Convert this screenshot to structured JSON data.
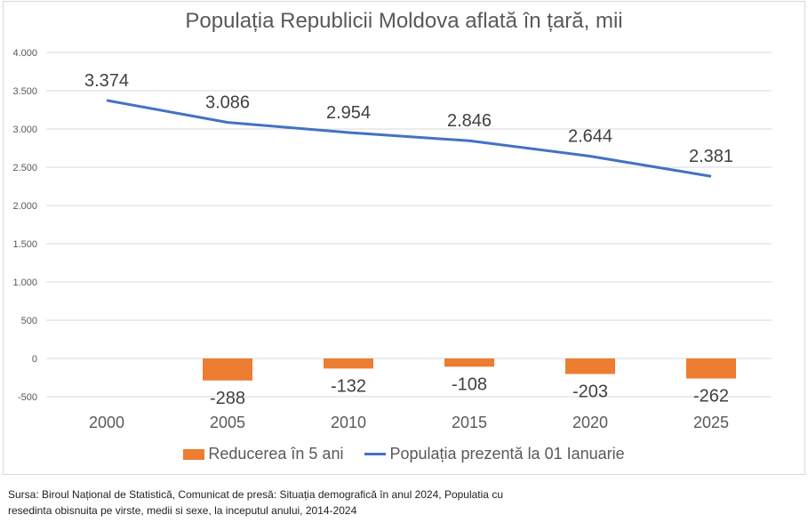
{
  "chart_data": {
    "type": "bar+line",
    "title": "Populația Republicii Moldova aflată în țară, mii",
    "xlabel": "",
    "ylabel": "",
    "categories": [
      "2000",
      "2005",
      "2010",
      "2015",
      "2020",
      "2025"
    ],
    "ylim": [
      -500,
      4000
    ],
    "yticks": [
      4000,
      3500,
      3000,
      2500,
      2000,
      1500,
      1000,
      500,
      0,
      -500
    ],
    "ytick_labels": [
      "4.000",
      "3.500",
      "3.000",
      "2.500",
      "2.000",
      "1.500",
      "1.000",
      "500",
      "0",
      "-500"
    ],
    "grid": true,
    "legend_position": "bottom",
    "series": [
      {
        "name": "Reducerea în 5 ani",
        "type": "bar",
        "color": "#ed7d31",
        "values": [
          null,
          -288,
          -132,
          -108,
          -203,
          -262
        ],
        "labels": [
          "",
          "-288",
          "-132",
          "-108",
          "-203",
          "-262"
        ]
      },
      {
        "name": "Populația prezentă  la 01 Ianuarie",
        "type": "line",
        "color": "#4472c4",
        "values": [
          3374,
          3086,
          2954,
          2846,
          2644,
          2381
        ],
        "labels": [
          "3.374",
          "3.086",
          "2.954",
          "2.846",
          "2.644",
          "2.381"
        ]
      }
    ]
  },
  "legend": {
    "bar_label": "Reducerea în 5 ani",
    "line_label": "Populația prezentă  la 01 Ianuarie"
  },
  "source": {
    "line1": "Sursa: Biroul Național de Statistică, Comunicat de presă: Situația demografică în anul 2024,  Populatia cu",
    "line2": "resedinta obisnuita pe virste, medii si sexe, la inceputul anului, 2014-2024"
  }
}
